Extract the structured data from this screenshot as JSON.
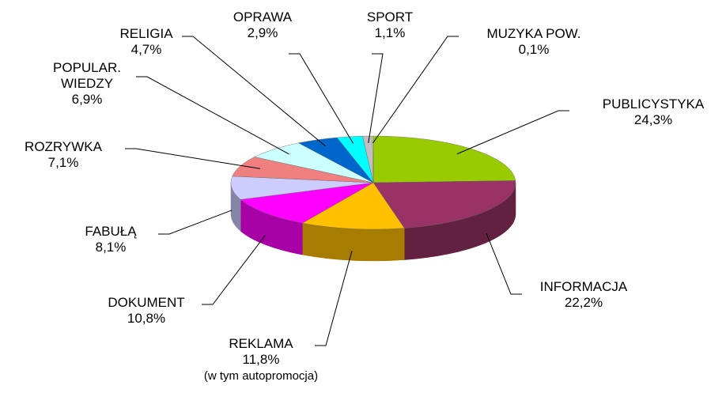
{
  "chart_data": {
    "type": "pie3d",
    "categories": [
      "PUBLICYSTYKA",
      "INFORMACJA",
      "REKLAMA",
      "DOKUMENT",
      "FABUŁĄ",
      "ROZRYWKA",
      "POPULAR.\nWIEDZY",
      "RELIGIA",
      "OPRAWA",
      "SPORT",
      "MUZYKA POW."
    ],
    "values": [
      24.3,
      22.2,
      11.8,
      10.8,
      8.1,
      7.1,
      6.9,
      4.7,
      2.9,
      1.1,
      0.1
    ],
    "value_labels": [
      "24,3%",
      "22,2%",
      "11,8%",
      "10,8%",
      "8,1%",
      "7,1%",
      "6,9%",
      "4,7%",
      "2,9%",
      "1,1%",
      "0,1%"
    ],
    "colors": [
      "#99cc00",
      "#993366",
      "#ffc000",
      "#ff00ff",
      "#ccccff",
      "#f08080",
      "#ccffff",
      "#0066cc",
      "#00ffff",
      "#c0c0c0",
      "#ffffcc"
    ],
    "annotation": "(w tym autopromocja)"
  }
}
